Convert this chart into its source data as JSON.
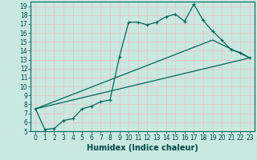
{
  "title": "",
  "xlabel": "Humidex (Indice chaleur)",
  "bg_color": "#c8e8e0",
  "grid_color": "#e8c8c8",
  "line_color": "#006858",
  "xlim_min": -0.5,
  "xlim_max": 23.5,
  "ylim_min": 5,
  "ylim_max": 19.5,
  "xticks": [
    0,
    1,
    2,
    3,
    4,
    5,
    6,
    7,
    8,
    9,
    10,
    11,
    12,
    13,
    14,
    15,
    16,
    17,
    18,
    19,
    20,
    21,
    22,
    23
  ],
  "yticks": [
    5,
    6,
    7,
    8,
    9,
    10,
    11,
    12,
    13,
    14,
    15,
    16,
    17,
    18,
    19
  ],
  "series1_x": [
    0,
    1,
    2,
    3,
    4,
    5,
    6,
    7,
    8,
    9,
    10,
    11,
    12,
    13,
    14,
    15,
    16,
    17,
    18,
    19,
    20,
    21,
    22,
    23
  ],
  "series1_y": [
    7.5,
    5.2,
    5.3,
    6.2,
    6.4,
    7.5,
    7.8,
    8.3,
    8.5,
    13.3,
    17.2,
    17.2,
    16.9,
    17.2,
    17.8,
    18.1,
    17.3,
    19.2,
    17.4,
    16.2,
    15.2,
    14.1,
    13.8,
    13.2
  ],
  "series2_x": [
    0,
    23
  ],
  "series2_y": [
    7.5,
    13.2
  ],
  "series3_x": [
    0,
    19,
    23
  ],
  "series3_y": [
    7.5,
    15.2,
    13.2
  ],
  "tick_fontsize": 5.5,
  "label_fontsize": 7.0,
  "tick_color": "#004848",
  "label_color": "#004848"
}
